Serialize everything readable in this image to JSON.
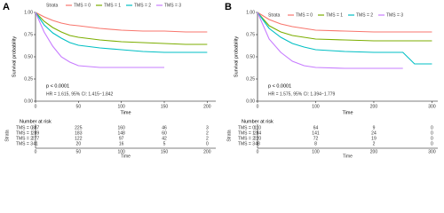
{
  "chart_data": [
    {
      "type": "line",
      "panel_label": "A",
      "legend_title": "Strata",
      "xlabel": "Time",
      "ylabel": "Survival probability",
      "x": [
        0,
        10,
        20,
        30,
        40,
        50,
        75,
        100,
        125,
        150,
        175,
        200
      ],
      "series": [
        {
          "name": "TMS = 0",
          "color": "#f8766d",
          "values": [
            1,
            0.95,
            0.91,
            0.88,
            0.86,
            0.85,
            0.82,
            0.8,
            0.79,
            0.79,
            0.78,
            0.78
          ]
        },
        {
          "name": "TMS = 1",
          "color": "#7cae00",
          "values": [
            1,
            0.9,
            0.83,
            0.78,
            0.74,
            0.72,
            0.69,
            0.67,
            0.66,
            0.65,
            0.64,
            0.64
          ]
        },
        {
          "name": "TMS = 2",
          "color": "#00bfc4",
          "values": [
            1,
            0.86,
            0.77,
            0.71,
            0.66,
            0.63,
            0.6,
            0.58,
            0.56,
            0.55,
            0.55,
            0.55
          ]
        },
        {
          "name": "TMS = 3",
          "color": "#c77cff",
          "values": [
            1,
            0.78,
            0.62,
            0.5,
            0.44,
            0.4,
            0.38,
            0.38,
            0.38,
            0.38,
            null,
            null
          ]
        }
      ],
      "xlim": [
        0,
        210
      ],
      "xticks": [
        0,
        50,
        100,
        150,
        200
      ],
      "ylim": [
        0,
        1
      ],
      "yticks": [
        {
          "value": 0,
          "label": "0.00"
        },
        {
          "value": 0.25,
          "label": "0.25"
        },
        {
          "value": 0.5,
          "label": "0.50"
        },
        {
          "value": 0.75,
          "label": "0.75"
        },
        {
          "value": 1,
          "label": "1.00"
        }
      ],
      "annotations": [
        "p < 0.0001",
        "HR = 1.615, 95% CI: 1.415−1.842"
      ],
      "risk_table": {
        "title": "Number at risk",
        "ylabel": "Strata",
        "xlabel": "Time",
        "rows": [
          [
            387,
            225,
            160,
            46,
            3
          ],
          [
            289,
            183,
            148,
            60,
            2
          ],
          [
            277,
            122,
            97,
            42,
            2
          ],
          [
            41,
            20,
            16,
            5,
            0
          ]
        ]
      }
    },
    {
      "type": "line",
      "panel_label": "B",
      "legend_title": "Strata",
      "xlabel": "Time",
      "ylabel": "Survival probability",
      "x": [
        0,
        20,
        40,
        60,
        80,
        100,
        150,
        200,
        250,
        270,
        300
      ],
      "series": [
        {
          "name": "TMS = 0",
          "color": "#f8766d",
          "values": [
            1,
            0.92,
            0.87,
            0.84,
            0.82,
            0.8,
            0.79,
            0.78,
            0.78,
            0.78,
            0.78
          ]
        },
        {
          "name": "TMS = 1",
          "color": "#7cae00",
          "values": [
            1,
            0.85,
            0.78,
            0.74,
            0.72,
            0.7,
            0.69,
            0.68,
            0.68,
            0.68,
            0.68
          ]
        },
        {
          "name": "TMS = 2",
          "color": "#00bfc4",
          "values": [
            1,
            0.82,
            0.72,
            0.65,
            0.61,
            0.58,
            0.56,
            0.55,
            0.55,
            0.42,
            0.42
          ]
        },
        {
          "name": "TMS = 3",
          "color": "#c77cff",
          "values": [
            1,
            0.7,
            0.55,
            0.45,
            0.4,
            0.38,
            0.37,
            0.37,
            0.37,
            null,
            null
          ]
        }
      ],
      "xlim": [
        0,
        310
      ],
      "xticks": [
        0,
        100,
        200,
        300
      ],
      "ylim": [
        0,
        1
      ],
      "yticks": [
        {
          "value": 0,
          "label": "0.00"
        },
        {
          "value": 0.25,
          "label": "0.25"
        },
        {
          "value": 0.5,
          "label": "0.50"
        },
        {
          "value": 0.75,
          "label": "0.75"
        },
        {
          "value": 1,
          "label": "1.00"
        }
      ],
      "annotations": [
        "p < 0.0001",
        "HR = 1.575, 95% CI: 1.394−1.779"
      ],
      "risk_table": {
        "title": "Number at risk",
        "ylabel": "Strata",
        "xlabel": "Time",
        "rows": [
          [
            110,
            64,
            9,
            0
          ],
          [
            284,
            141,
            24,
            0
          ],
          [
            220,
            72,
            19,
            0
          ],
          [
            48,
            8,
            2,
            0
          ]
        ]
      }
    }
  ]
}
